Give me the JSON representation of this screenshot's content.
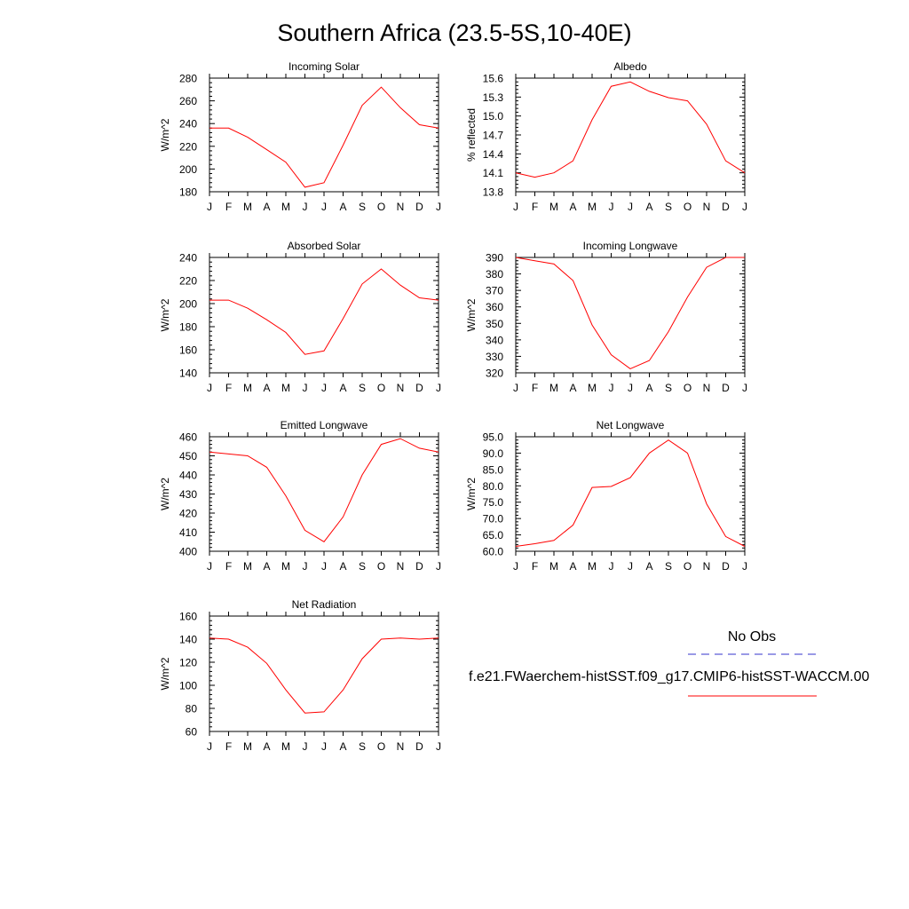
{
  "page_title": "Southern Africa (23.5-5S,10-40E)",
  "months": [
    "J",
    "F",
    "M",
    "A",
    "M",
    "J",
    "J",
    "A",
    "S",
    "O",
    "N",
    "D",
    "J"
  ],
  "colors": {
    "model": "#ff0000",
    "obs": "#3333cc",
    "axis": "#000000"
  },
  "legend": {
    "obs_label": "No Obs",
    "model_label": "f.e21.FWaerchem-histSST.f09_g17.CMIP6-histSST-WACCM.00"
  },
  "chart_data": [
    {
      "id": "incoming-solar",
      "type": "line",
      "title": "Incoming Solar",
      "ylabel": "W/m^2",
      "ylim": [
        180,
        280
      ],
      "yticks": [
        180,
        200,
        220,
        240,
        260,
        280
      ],
      "ytick_labels": [
        "180",
        "200",
        "220",
        "240",
        "260",
        "280"
      ],
      "series": [
        {
          "values": [
            236,
            236,
            228,
            217,
            206,
            184,
            188,
            221,
            256,
            272,
            254,
            239,
            236
          ]
        }
      ]
    },
    {
      "id": "albedo",
      "type": "line",
      "title": "Albedo",
      "ylabel": "% reflected",
      "ylim": [
        13.8,
        15.6
      ],
      "yticks": [
        13.8,
        14.1,
        14.4,
        14.7,
        15.0,
        15.3,
        15.6
      ],
      "ytick_labels": [
        "13.8",
        "14.1",
        "14.4",
        "14.7",
        "15.0",
        "15.3",
        "15.6"
      ],
      "series": [
        {
          "values": [
            14.1,
            14.03,
            14.1,
            14.29,
            14.94,
            15.47,
            15.54,
            15.39,
            15.29,
            15.24,
            14.87,
            14.29,
            14.1
          ]
        }
      ]
    },
    {
      "id": "absorbed-solar",
      "type": "line",
      "title": "Absorbed Solar",
      "ylabel": "W/m^2",
      "ylim": [
        140,
        240
      ],
      "yticks": [
        140,
        160,
        180,
        200,
        220,
        240
      ],
      "ytick_labels": [
        "140",
        "160",
        "180",
        "200",
        "220",
        "240"
      ],
      "series": [
        {
          "values": [
            203,
            203,
            196,
            186,
            175,
            156,
            159,
            187,
            217,
            230,
            216,
            205,
            203
          ]
        }
      ]
    },
    {
      "id": "incoming-longwave",
      "type": "line",
      "title": "Incoming Longwave",
      "ylabel": "W/m^2",
      "ylim": [
        320,
        390
      ],
      "yticks": [
        320,
        330,
        340,
        350,
        360,
        370,
        380,
        390
      ],
      "ytick_labels": [
        "320",
        "330",
        "340",
        "350",
        "360",
        "370",
        "380",
        "390"
      ],
      "series": [
        {
          "values": [
            390,
            388,
            386,
            376,
            349,
            331,
            322.5,
            327.5,
            345,
            366,
            384,
            390,
            390
          ]
        }
      ]
    },
    {
      "id": "emitted-longwave",
      "type": "line",
      "title": "Emitted Longwave",
      "ylabel": "W/m^2",
      "ylim": [
        400,
        460
      ],
      "yticks": [
        400,
        410,
        420,
        430,
        440,
        450,
        460
      ],
      "ytick_labels": [
        "400",
        "410",
        "420",
        "430",
        "440",
        "450",
        "460"
      ],
      "series": [
        {
          "values": [
            452,
            451,
            450,
            444,
            429,
            411,
            405,
            418,
            440,
            456,
            459,
            454,
            452
          ]
        }
      ]
    },
    {
      "id": "net-longwave",
      "type": "line",
      "title": "Net Longwave",
      "ylabel": "W/m^2",
      "ylim": [
        60,
        95
      ],
      "yticks": [
        60,
        65,
        70,
        75,
        80,
        85,
        90,
        95
      ],
      "ytick_labels": [
        "60.0",
        "65.0",
        "70.0",
        "75.0",
        "80.0",
        "85.0",
        "90.0",
        "95.0"
      ],
      "series": [
        {
          "values": [
            61.5,
            62.3,
            63.3,
            68,
            79.5,
            79.8,
            82.5,
            90,
            94,
            90,
            74.5,
            64.5,
            61.5
          ]
        }
      ]
    },
    {
      "id": "net-radiation",
      "type": "line",
      "title": "Net Radiation",
      "ylabel": "W/m^2",
      "ylim": [
        60,
        160
      ],
      "yticks": [
        60,
        80,
        100,
        120,
        140,
        160
      ],
      "ytick_labels": [
        "60",
        "80",
        "100",
        "120",
        "140",
        "160"
      ],
      "series": [
        {
          "values": [
            141,
            140,
            133,
            119,
            96,
            76,
            77,
            96,
            123,
            140,
            141,
            140,
            141
          ]
        }
      ]
    }
  ]
}
